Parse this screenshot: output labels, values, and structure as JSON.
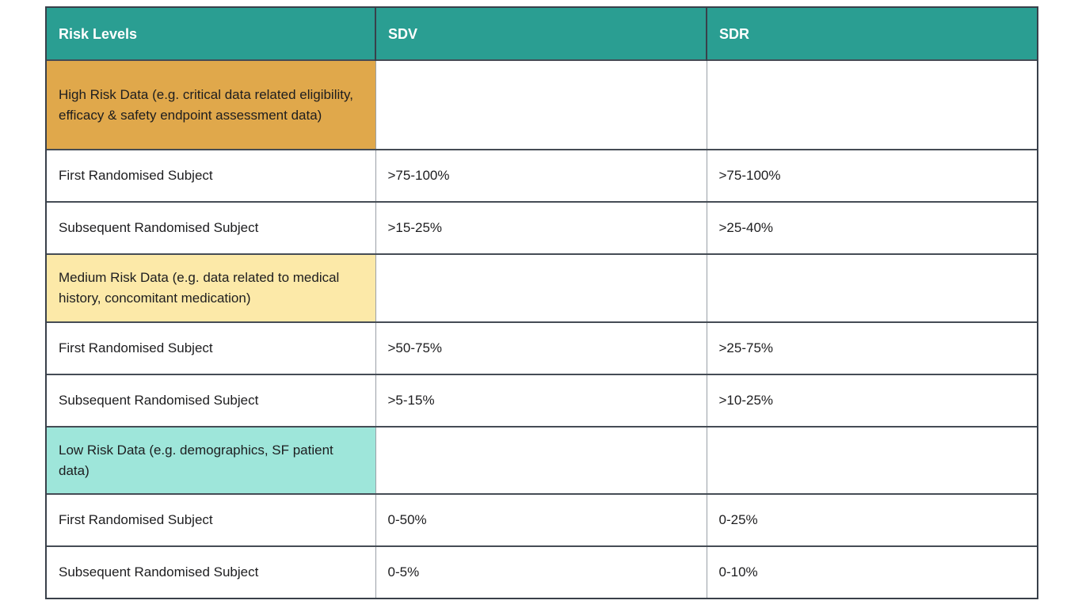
{
  "chart_data": {
    "type": "table",
    "columns": [
      "Risk Levels",
      "SDV",
      "SDR"
    ],
    "rows": [
      {
        "row_type": "category",
        "risk_level": "High Risk Data (e.g. critical data related eligibility, efficacy & safety endpoint assessment data)",
        "sdv": "",
        "sdr": ""
      },
      {
        "row_type": "data",
        "risk_level": "First Randomised Subject",
        "sdv": ">75-100%",
        "sdr": ">75-100%"
      },
      {
        "row_type": "data",
        "risk_level": "Subsequent Randomised Subject",
        "sdv": ">15-25%",
        "sdr": ">25-40%"
      },
      {
        "row_type": "category",
        "risk_level": "Medium Risk Data (e.g. data related to medical history, concomitant medication)",
        "sdv": "",
        "sdr": ""
      },
      {
        "row_type": "data",
        "risk_level": "First Randomised Subject",
        "sdv": ">50-75%",
        "sdr": ">25-75%"
      },
      {
        "row_type": "data",
        "risk_level": "Subsequent Randomised Subject",
        "sdv": ">5-15%",
        "sdr": ">10-25%"
      },
      {
        "row_type": "category",
        "risk_level": "Low Risk Data (e.g. demographics, SF patient data)",
        "sdv": "",
        "sdr": ""
      },
      {
        "row_type": "data",
        "risk_level": "First Randomised Subject",
        "sdv": "0-50%",
        "sdr": "0-25%"
      },
      {
        "row_type": "data",
        "risk_level": "Subsequent Randomised Subject",
        "sdv": "0-5%",
        "sdr": "0-10%"
      }
    ],
    "layout": {
      "grid": "on",
      "header_position": "top"
    }
  },
  "colors": {
    "header_bg": "#2a9e92",
    "header_text": "#ffffff",
    "high_risk_bg": "#e0a84b",
    "medium_risk_bg": "#fce9a8",
    "low_risk_bg": "#9ee6da",
    "body_text": "#1d1d1f",
    "border_dark": "#454c55",
    "border_light": "#9aa0a7",
    "outer_border": "#39404a",
    "page_bg": "#ffffff"
  }
}
